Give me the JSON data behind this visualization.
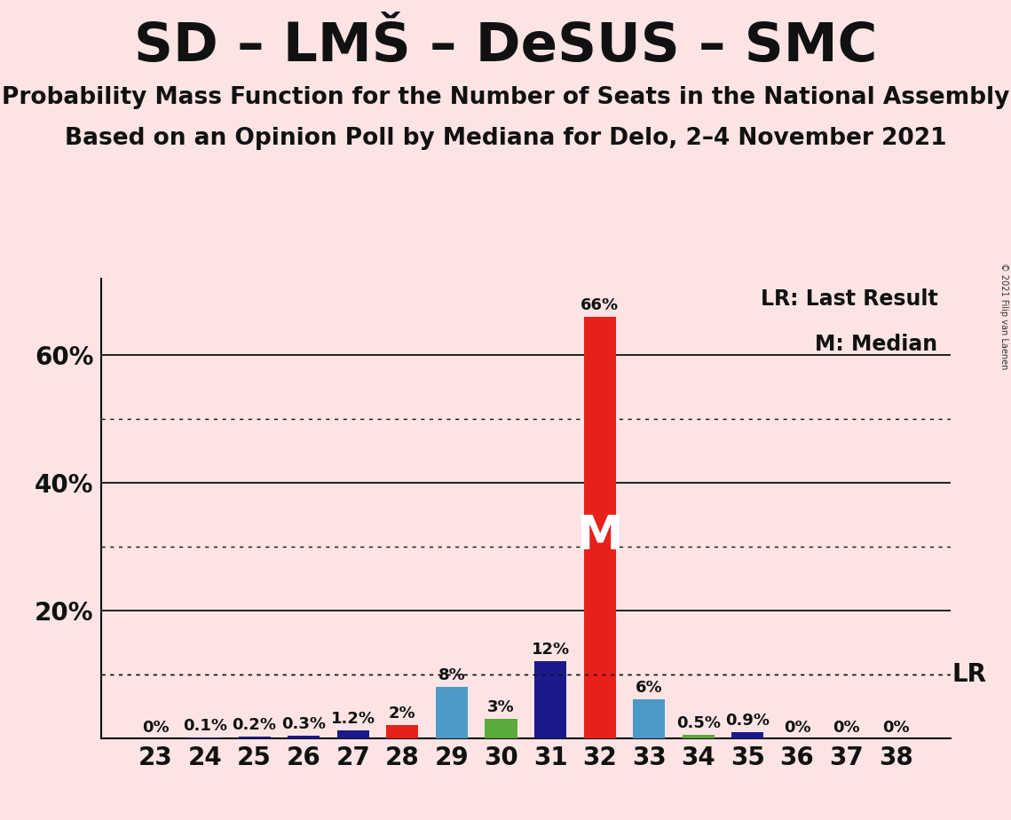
{
  "title": "SD – LMŠ – DeSUS – SMC",
  "subtitle1": "Probability Mass Function for the Number of Seats in the National Assembly",
  "subtitle2": "Based on an Opinion Poll by Mediana for Delo, 2–4 November 2021",
  "copyright": "© 2021 Filip van Laenen",
  "legend_lr": "LR: Last Result",
  "legend_m": "M: Median",
  "lr_label": "LR",
  "m_label": "M",
  "seats": [
    23,
    24,
    25,
    26,
    27,
    28,
    29,
    30,
    31,
    32,
    33,
    34,
    35,
    36,
    37,
    38
  ],
  "values": [
    0.0,
    0.1,
    0.2,
    0.3,
    1.2,
    2.0,
    8.0,
    3.0,
    12.0,
    66.0,
    6.0,
    0.5,
    0.9,
    0.0,
    0.0,
    0.0
  ],
  "labels": [
    "0%",
    "0.1%",
    "0.2%",
    "0.3%",
    "1.2%",
    "2%",
    "8%",
    "3%",
    "12%",
    "66%",
    "6%",
    "0.5%",
    "0.9%",
    "0%",
    "0%",
    "0%"
  ],
  "bar_colors": [
    "#1a1a8c",
    "#1a1a8c",
    "#1a1a8c",
    "#1a1a8c",
    "#1a1a8c",
    "#e8201a",
    "#4b9ac7",
    "#5aaa3c",
    "#1a1a8c",
    "#e8201a",
    "#4b9ac7",
    "#5aaa3c",
    "#1a1a8c",
    "#1a1a8c",
    "#1a1a8c",
    "#1a1a8c"
  ],
  "median_seat": 32,
  "lr_value": 10.0,
  "background_color": "#fce4e4",
  "ylim_max": 72,
  "solid_yticks": [
    20,
    40,
    60
  ],
  "dotted_yticks": [
    10,
    30,
    50
  ],
  "bar_label_fontsize": 13,
  "axis_tick_fontsize": 20,
  "title_fontsize": 44,
  "subtitle_fontsize": 19,
  "legend_fontsize": 17,
  "lr_fontsize": 20,
  "m_fontsize": 38
}
